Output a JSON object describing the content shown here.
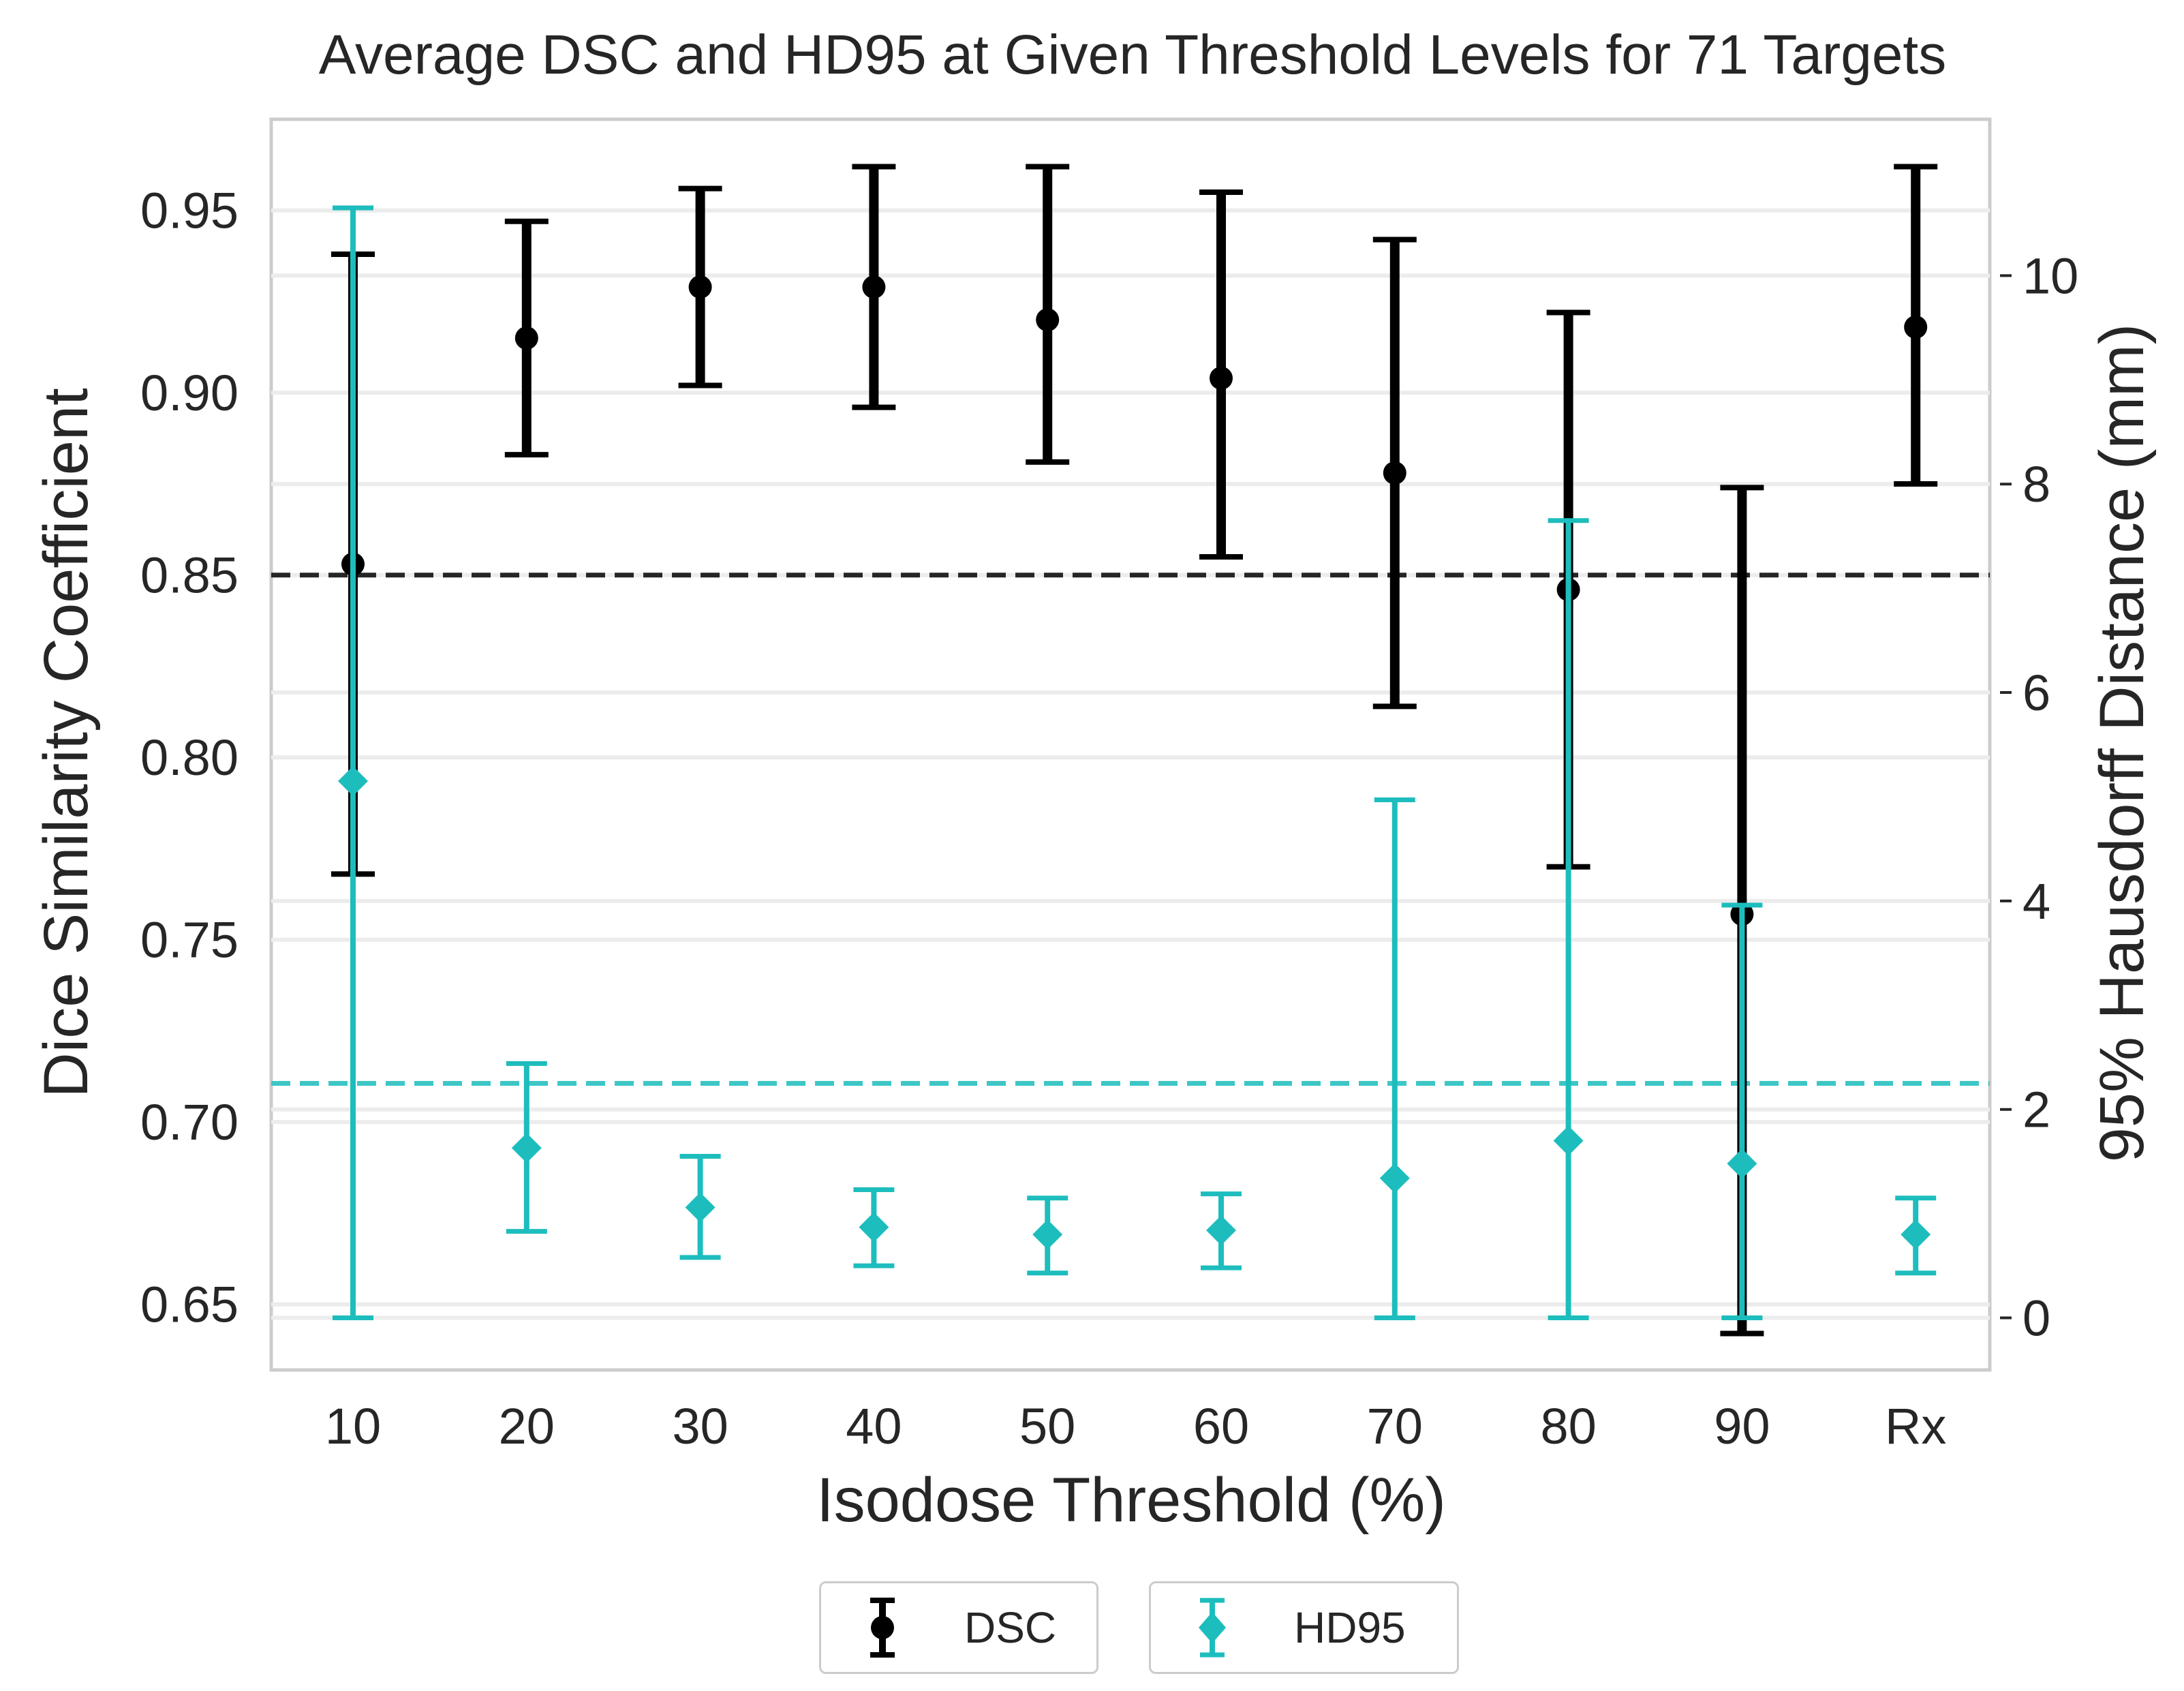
{
  "chart_data": {
    "type": "errorbar",
    "title": "Average DSC and HD95 at Given Threshold Levels for 71 Targets",
    "xlabel": "Isodose Threshold (%)",
    "ylabel_left": "Dice Similarity Coefficient",
    "ylabel_right": "95% Hausdorff Distance (mm)",
    "categories": [
      "10",
      "20",
      "30",
      "40",
      "50",
      "60",
      "70",
      "80",
      "90",
      "Rx"
    ],
    "ylim_left": [
      0.632,
      0.975
    ],
    "ylim_right": [
      -0.5,
      11.5
    ],
    "yticks_left": [
      "0.65",
      "0.70",
      "0.75",
      "0.80",
      "0.85",
      "0.90",
      "0.95"
    ],
    "yticks_right": [
      "0",
      "2",
      "4",
      "6",
      "8",
      "10"
    ],
    "series": [
      {
        "name": "DSC",
        "axis": "left",
        "color": "#000000",
        "marker": "circle",
        "values": [
          0.853,
          0.915,
          0.929,
          0.929,
          0.92,
          0.904,
          0.878,
          0.846,
          0.757,
          0.918
        ],
        "lower": [
          0.768,
          0.883,
          0.902,
          0.896,
          0.881,
          0.855,
          0.814,
          0.77,
          0.642,
          0.875
        ],
        "upper": [
          0.938,
          0.947,
          0.956,
          0.962,
          0.962,
          0.955,
          0.942,
          0.922,
          0.874,
          0.962
        ]
      },
      {
        "name": "HD95",
        "axis": "right",
        "color": "#1ebdbd",
        "marker": "diamond",
        "values": [
          5.15,
          1.63,
          1.06,
          0.87,
          0.8,
          0.84,
          1.34,
          1.7,
          1.48,
          0.8
        ],
        "lower": [
          0.0,
          0.83,
          0.58,
          0.5,
          0.43,
          0.48,
          0.0,
          0.0,
          0.0,
          0.43
        ],
        "upper": [
          10.65,
          2.44,
          1.55,
          1.23,
          1.15,
          1.19,
          4.97,
          7.65,
          3.96,
          1.15
        ]
      }
    ],
    "reference_lines": [
      {
        "axis": "left",
        "value": 0.85,
        "color": "#262626",
        "style": "dashed"
      },
      {
        "axis": "right",
        "value": 2.25,
        "color": "#3dc6c6",
        "style": "dashed"
      }
    ],
    "legend": {
      "position": "bottom-center",
      "entries": [
        "DSC",
        "HD95"
      ]
    },
    "grid": true
  }
}
